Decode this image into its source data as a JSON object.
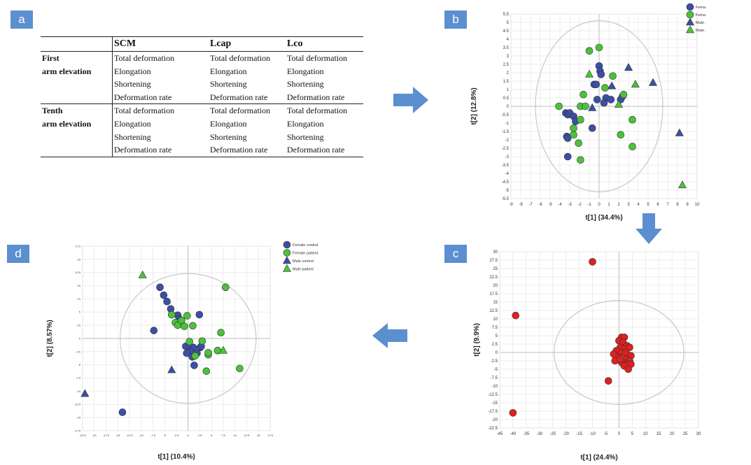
{
  "panels": {
    "a": {
      "label": "a",
      "table": {
        "headers": [
          "",
          "SCM",
          "Lcap",
          "Lco"
        ],
        "groups": [
          {
            "row_label_lines": [
              "First",
              "arm elevation"
            ],
            "measures": [
              "Total deformation",
              "Elongation",
              "Shortening",
              "Deformation rate"
            ]
          },
          {
            "row_label_lines": [
              "Tenth",
              "arm elevation"
            ],
            "measures": [
              "Total deformation",
              "Elongation",
              "Shortening",
              "Deformation rate"
            ]
          }
        ]
      }
    },
    "b": {
      "label": "b"
    },
    "c": {
      "label": "c"
    },
    "d": {
      "label": "d"
    }
  },
  "colors": {
    "badge": "#5b8fd0",
    "arrow": "#5b8fd0",
    "female_control": "#3b4fa6",
    "female_patient": "#4cc23a",
    "male_control": "#3b4fa6",
    "male_patient": "#4cc23a",
    "outlier_red": "#e02020",
    "grid": "#e6e6e6",
    "axis": "#bdbdbd",
    "ellipse": "#c8c8c8"
  },
  "chart_data": [
    {
      "id": "b",
      "type": "scatter",
      "xlabel": "t[1] (34.4%)",
      "ylabel": "t[2] (12.8%)",
      "xlim": [
        -9,
        10
      ],
      "ylim": [
        -5.5,
        5.5
      ],
      "xticks": [
        -9,
        -8,
        -7,
        -6,
        -5,
        -4,
        -3,
        -2,
        -1,
        0,
        1,
        2,
        3,
        4,
        5,
        6,
        7,
        8,
        9,
        10
      ],
      "xtick_labels": [
        "-9",
        "-8",
        "-7",
        "-6",
        "-5",
        "-4",
        "-3",
        "-2",
        "-1",
        "0",
        "1",
        "2",
        "3",
        "4",
        "5",
        "6",
        "7",
        "8",
        "9",
        "10"
      ],
      "yticks": [
        5.5,
        5,
        4.5,
        4,
        3.5,
        3,
        2.5,
        2,
        1.5,
        1,
        0.5,
        0,
        -0.5,
        -1,
        -1.5,
        -2,
        -2.5,
        -3,
        -3.5,
        -4,
        -4.5,
        -5,
        -5.5
      ],
      "ytick_labels": [
        "5.5",
        "5",
        "4.5",
        "4",
        "3.5",
        "3",
        "2.5",
        "2",
        "1.5",
        "1",
        "0.5",
        "0",
        "-0.5",
        "-1",
        "-1.5",
        "-2",
        "-2.5",
        "-3",
        "-3.5",
        "-4",
        "-4.5",
        "-5",
        "-5.5"
      ],
      "ellipse": {
        "rx": 6.5,
        "ry": 5.1
      },
      "legend_position": "top-right",
      "series": [
        {
          "name": "Female control",
          "marker": "circle",
          "color": "#3b4fa6",
          "points": [
            [
              0,
              2.4
            ],
            [
              0.1,
              2.1
            ],
            [
              -0.5,
              1.3
            ],
            [
              -0.3,
              1.3
            ],
            [
              -0.2,
              0.4
            ],
            [
              0.7,
              0.5
            ],
            [
              0.5,
              0.2
            ],
            [
              2.4,
              0.6
            ],
            [
              2.2,
              0.4
            ],
            [
              -3.4,
              -0.4
            ],
            [
              -3.2,
              -0.5
            ],
            [
              -3,
              -0.4
            ],
            [
              -2.6,
              -0.6
            ],
            [
              -2.4,
              -0.9
            ],
            [
              -3.3,
              -1.8
            ],
            [
              -3.2,
              -1.9
            ],
            [
              -0.7,
              -1.3
            ],
            [
              -3.2,
              -3
            ],
            [
              0.2,
              1.9
            ],
            [
              1.2,
              0.4
            ]
          ]
        },
        {
          "name": "Female patient",
          "marker": "circle",
          "color": "#4cc23a",
          "points": [
            [
              -1,
              3.3
            ],
            [
              0,
              3.5
            ],
            [
              1.4,
              1.8
            ],
            [
              2.5,
              0.7
            ],
            [
              -4.1,
              0
            ],
            [
              -1.6,
              0.7
            ],
            [
              -1.9,
              0
            ],
            [
              -1.4,
              0
            ],
            [
              -1.9,
              -0.8
            ],
            [
              -2.6,
              -1.3
            ],
            [
              -2.6,
              -1.7
            ],
            [
              -2.1,
              -2.2
            ],
            [
              -1.9,
              -3.2
            ],
            [
              3.4,
              -0.8
            ],
            [
              2.2,
              -1.7
            ],
            [
              3.4,
              -2.4
            ],
            [
              0.6,
              1.1
            ]
          ]
        },
        {
          "name": "Male control",
          "marker": "triangle",
          "color": "#3b4fa6",
          "points": [
            [
              3,
              2.3
            ],
            [
              5.5,
              1.4
            ],
            [
              1.3,
              1.2
            ],
            [
              8.2,
              -1.6
            ],
            [
              -0.7,
              -0.1
            ]
          ]
        },
        {
          "name": "Male patient",
          "marker": "triangle",
          "color": "#4cc23a",
          "points": [
            [
              -1,
              1.9
            ],
            [
              3.7,
              1.3
            ],
            [
              8.5,
              -4.7
            ],
            [
              2,
              0.1
            ]
          ]
        }
      ]
    },
    {
      "id": "c",
      "type": "scatter",
      "xlabel": "t[1] (24.4%)",
      "ylabel": "t[2] (9.9%)",
      "xlim": [
        -45,
        30
      ],
      "ylim": [
        -22.5,
        30
      ],
      "xticks": [
        -45,
        -40,
        -35,
        -30,
        -25,
        -20,
        -15,
        -10,
        -5,
        0,
        5,
        10,
        15,
        20,
        25,
        30
      ],
      "xtick_labels": [
        "-45",
        "-40",
        "-35",
        "-30",
        "-25",
        "-20",
        "-15",
        "-10",
        "-5",
        "0",
        "5",
        "10",
        "15",
        "20",
        "25",
        "30"
      ],
      "yticks": [
        30,
        27.5,
        25,
        22.5,
        20,
        17.5,
        15,
        12.5,
        10,
        7.5,
        5,
        2.5,
        0,
        -2.5,
        -5,
        -7.5,
        -10,
        -12.5,
        -15,
        -17.5,
        -20,
        -22.5
      ],
      "ytick_labels": [
        "30",
        "27.5",
        "25",
        "22.5",
        "20",
        "17.5",
        "15",
        "12.5",
        "10",
        "7.5",
        "5",
        "2.5",
        "0",
        "-2.5",
        "-5",
        "-7.5",
        "-10",
        "-12.5",
        "-15",
        "-17.5",
        "-20",
        "-22.5"
      ],
      "ellipse": {
        "rx": 24.5,
        "ry": 15.5
      },
      "series": [
        {
          "name": "",
          "marker": "circle",
          "color": "#e02020",
          "points": [
            [
              -10,
              27
            ],
            [
              -39,
              11
            ],
            [
              -40,
              -18
            ],
            [
              -4,
              -8.5
            ],
            [
              1,
              4.5
            ],
            [
              2,
              4.5
            ],
            [
              0,
              3.5
            ],
            [
              1.5,
              3
            ],
            [
              3,
              2
            ],
            [
              0.5,
              1.5
            ],
            [
              2,
              1
            ],
            [
              4,
              1.5
            ],
            [
              -1,
              0.5
            ],
            [
              1,
              0
            ],
            [
              3,
              -0.5
            ],
            [
              -2,
              -0.5
            ],
            [
              4.5,
              -1
            ],
            [
              0,
              -1.5
            ],
            [
              2.5,
              -2
            ],
            [
              4,
              -2.5
            ],
            [
              -1.5,
              -2.5
            ],
            [
              1,
              -3
            ],
            [
              3,
              -3.5
            ],
            [
              4.5,
              -3.5
            ],
            [
              2,
              -4
            ],
            [
              3.5,
              -5
            ],
            [
              0.5,
              -2
            ],
            [
              2.5,
              0
            ]
          ]
        }
      ]
    },
    {
      "id": "d",
      "type": "scatter",
      "xlabel": "t[1] (10.4%)",
      "ylabel": "t[2] (8.57%)",
      "xlim": [
        -22.5,
        17.5
      ],
      "ylim": [
        -17.5,
        17.5
      ],
      "xticks": [
        -22.5,
        -20,
        -17.5,
        -15,
        -12.5,
        -10,
        -7.5,
        -5,
        -2.5,
        0,
        2.5,
        5,
        7.5,
        10,
        12.5,
        15,
        17.5
      ],
      "xtick_labels": [
        "-22.5",
        "-20",
        "-17.5",
        "-15",
        "-12.5",
        "-10",
        "-7.5",
        "-5",
        "-2.5",
        "0",
        "2.5",
        "5",
        "7.5",
        "10",
        "12.5",
        "15",
        "17.5"
      ],
      "yticks": [
        17.5,
        15,
        12.5,
        10,
        7.5,
        5,
        2.5,
        0,
        -2.5,
        -5,
        -7.5,
        -10,
        -12.5,
        -15,
        -17.5
      ],
      "ytick_labels": [
        "17.5",
        "15",
        "12.5",
        "10",
        "7.5",
        "5",
        "2.5",
        "0",
        "-2.5",
        "-5",
        "-7.5",
        "-10",
        "-12.5",
        "-15",
        "-17.5"
      ],
      "ellipse": {
        "rx": 14.5,
        "ry": 12.3
      },
      "legend_position": "top-right",
      "series": [
        {
          "name": "Female control",
          "marker": "circle",
          "color": "#3b4fa6",
          "points": [
            [
              -6,
              9.7
            ],
            [
              -5.2,
              8.2
            ],
            [
              -4.5,
              7
            ],
            [
              -3.7,
              5.6
            ],
            [
              -3.5,
              4.5
            ],
            [
              -2.2,
              4.4
            ],
            [
              -1.9,
              3.7
            ],
            [
              -7.3,
              1.5
            ],
            [
              2.4,
              4.5
            ],
            [
              -0.5,
              -1.5
            ],
            [
              0.4,
              -1.6
            ],
            [
              1.1,
              -1.7
            ],
            [
              2.6,
              -1.7
            ],
            [
              0.5,
              -2.5
            ],
            [
              -0.3,
              -2.8
            ],
            [
              1.9,
              -2.8
            ],
            [
              0.9,
              -3.5
            ],
            [
              1.3,
              -5.1
            ],
            [
              -14,
              -14
            ],
            [
              2.8,
              -1.5
            ]
          ]
        },
        {
          "name": "Female patient",
          "marker": "circle",
          "color": "#4cc23a",
          "points": [
            [
              8,
              9.7
            ],
            [
              -3.5,
              4.5
            ],
            [
              -2.7,
              3
            ],
            [
              -2.2,
              2.5
            ],
            [
              -1.4,
              3.4
            ],
            [
              -0.2,
              4.3
            ],
            [
              -0.8,
              2.3
            ],
            [
              1,
              2.4
            ],
            [
              0.3,
              -0.6
            ],
            [
              3,
              -0.5
            ],
            [
              7,
              1.1
            ],
            [
              6.3,
              -2.3
            ],
            [
              4.3,
              -3.1
            ],
            [
              1.5,
              -3.3
            ],
            [
              11,
              -5.7
            ],
            [
              4.3,
              -2.7
            ],
            [
              3.9,
              -6.2
            ]
          ]
        },
        {
          "name": "Male control",
          "marker": "triangle",
          "color": "#3b4fa6",
          "points": [
            [
              -22,
              -10.5
            ],
            [
              -3.5,
              -6
            ]
          ]
        },
        {
          "name": "Male patient",
          "marker": "triangle",
          "color": "#4cc23a",
          "points": [
            [
              -9.7,
              12
            ],
            [
              7.5,
              -2.3
            ]
          ]
        }
      ]
    }
  ]
}
